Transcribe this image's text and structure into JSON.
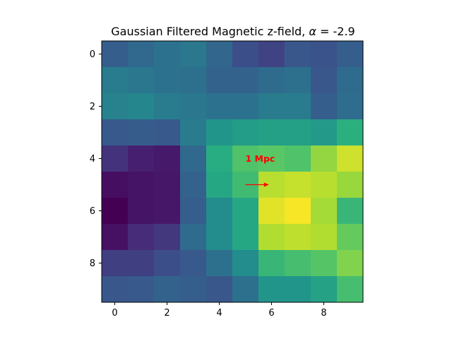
{
  "chart_data": {
    "type": "heatmap",
    "title": "Gaussian Filtered Magnetic z-field, ",
    "title_symbol": "α",
    "title_suffix": " = -2.9",
    "colormap": "viridis",
    "xlabel": "",
    "ylabel": "",
    "xlim": [
      -0.5,
      9.5
    ],
    "ylim": [
      9.5,
      -0.5
    ],
    "x_ticks": [
      "0",
      "2",
      "4",
      "6",
      "8"
    ],
    "y_ticks": [
      "0",
      "2",
      "4",
      "6",
      "8"
    ],
    "grid": false,
    "values": [
      [
        0.3,
        0.34,
        0.38,
        0.4,
        0.33,
        0.24,
        0.21,
        0.27,
        0.26,
        0.3
      ],
      [
        0.42,
        0.4,
        0.38,
        0.37,
        0.32,
        0.32,
        0.35,
        0.37,
        0.27,
        0.35
      ],
      [
        0.44,
        0.46,
        0.42,
        0.4,
        0.38,
        0.38,
        0.42,
        0.42,
        0.3,
        0.36
      ],
      [
        0.28,
        0.29,
        0.28,
        0.42,
        0.52,
        0.55,
        0.57,
        0.57,
        0.54,
        0.64
      ],
      [
        0.17,
        0.11,
        0.09,
        0.34,
        0.63,
        0.72,
        0.74,
        0.72,
        0.84,
        0.93
      ],
      [
        0.05,
        0.07,
        0.08,
        0.32,
        0.6,
        0.69,
        0.9,
        0.92,
        0.9,
        0.85
      ],
      [
        0.0,
        0.07,
        0.08,
        0.3,
        0.48,
        0.6,
        0.96,
        0.99,
        0.87,
        0.67
      ],
      [
        0.06,
        0.15,
        0.18,
        0.35,
        0.48,
        0.6,
        0.89,
        0.91,
        0.89,
        0.76
      ],
      [
        0.2,
        0.2,
        0.24,
        0.28,
        0.37,
        0.48,
        0.67,
        0.7,
        0.73,
        0.81
      ],
      [
        0.27,
        0.28,
        0.32,
        0.3,
        0.27,
        0.37,
        0.52,
        0.52,
        0.58,
        0.7
      ]
    ],
    "annotation": {
      "text": "1 Mpc",
      "color": "#ff0000",
      "text_x": 5.0,
      "text_y": 4.0,
      "arrow_from": [
        5.0,
        5.0
      ],
      "arrow_to": [
        5.9,
        5.0
      ]
    }
  }
}
